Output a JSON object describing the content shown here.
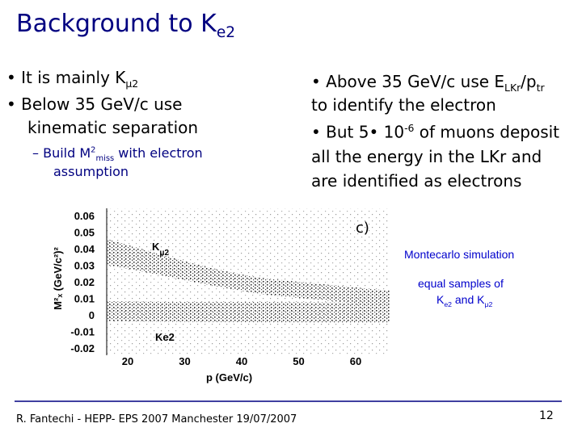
{
  "header": {
    "title": [
      {
        "t": "Background to K"
      },
      {
        "t": "e2",
        "s": "sub"
      }
    ]
  },
  "left": {
    "bullets": [
      [
        {
          "t": "• It is mainly K"
        },
        {
          "t": "μ2",
          "s": "sub"
        }
      ],
      [
        {
          "t": "• Below 35 GeV/c use"
        }
      ],
      [
        {
          "t": "kinematic separation"
        }
      ]
    ],
    "sub_bullet": [
      [
        {
          "t": "– Build M"
        },
        {
          "t": "2",
          "s": "sup"
        },
        {
          "t": "miss",
          "s": "sub"
        },
        {
          "t": " with electron"
        }
      ],
      [
        {
          "t": "assumption"
        }
      ]
    ]
  },
  "right": {
    "lines": [
      [
        {
          "t": "• Above 35 GeV/c use E"
        },
        {
          "t": "LKr",
          "s": "sub"
        },
        {
          "t": "/p"
        },
        {
          "t": "tr",
          "s": "sub"
        }
      ],
      [
        {
          "t": "to identify the electron"
        }
      ],
      [
        {
          "t": "• But 5• 10"
        },
        {
          "t": "-6",
          "s": "sup"
        },
        {
          "t": " of muons deposit"
        }
      ],
      [
        {
          "t": "all the energy in the LKr and"
        }
      ],
      [
        {
          "t": "are identified as electrons"
        }
      ]
    ]
  },
  "figure": {
    "panel": "c)",
    "yticks": [
      "0.06",
      "0.05",
      "0.04",
      "0.03",
      "0.02",
      "0.01",
      "0",
      "-0.01",
      "-0.02"
    ],
    "xticks": [
      "20",
      "30",
      "40",
      "50",
      "60"
    ],
    "xlabel": "p (GeV/c)",
    "ylabel": "M²ₓ (GeV/c²)²",
    "upper_label": [
      {
        "t": "K"
      },
      {
        "t": "μ2",
        "s": "sub"
      }
    ],
    "lower_label": [
      {
        "t": "Ke2"
      }
    ]
  },
  "notes": {
    "title": "Montecarlo simulation",
    "line1": "equal samples of",
    "line2": [
      {
        "t": "K"
      },
      {
        "t": "e2",
        "s": "sub"
      },
      {
        "t": " and K"
      },
      {
        "t": "μ2",
        "s": "sub"
      }
    ]
  },
  "footer": {
    "text": "R. Fantechi - HEPP- EPS 2007 Manchester 19/07/2007",
    "page": "12"
  }
}
